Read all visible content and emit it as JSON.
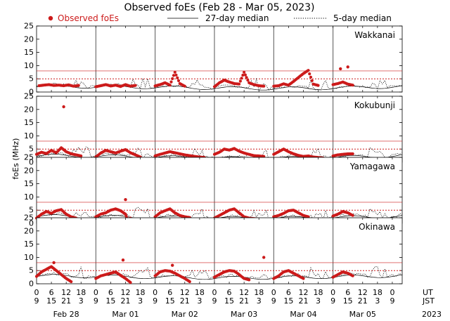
{
  "chart_data": {
    "type": "scatter",
    "title": "Observed foEs (Feb 28 - Mar 05, 2023)",
    "legend": {
      "observed": "Observed foEs",
      "median27": "27-day median",
      "median5": "5-day median",
      "placement": "top"
    },
    "ylabel": "foEs (MHz)",
    "ylim": [
      0,
      25
    ],
    "yticks": [
      0,
      5,
      10,
      15,
      20,
      25
    ],
    "xrange_hours_ut": [
      0,
      148
    ],
    "x_hour_ticks": [
      "0",
      "6",
      "12",
      "18",
      "0",
      "6",
      "12",
      "18",
      "0",
      "6",
      "12",
      "18",
      "0",
      "6",
      "12",
      "18",
      "0",
      "6",
      "12",
      "18",
      "0",
      "6",
      "12",
      "18",
      "0"
    ],
    "x_jst_ticks": [
      "9",
      "15",
      "21",
      "3",
      "9",
      "15",
      "21",
      "3",
      "9",
      "15",
      "21",
      "3",
      "9",
      "15",
      "21",
      "3",
      "9",
      "15",
      "21",
      "3",
      "9",
      "15",
      "21",
      "3",
      "9"
    ],
    "x_row_labels": {
      "ut": "UT",
      "jst": "JST",
      "year": "2023"
    },
    "dates": [
      "Feb 28",
      "Mar 01",
      "Mar 02",
      "Mar 03",
      "Mar 04",
      "Mar 05"
    ],
    "colors": {
      "observed": "#cc1a1a",
      "median27": "#000000",
      "threshold": "#cc1a1a",
      "day_line": "#555555"
    },
    "panels": [
      {
        "station": "Wakkanai",
        "thresholds": [
          5,
          8
        ],
        "median27": [
          2.2,
          2.0,
          1.8,
          1.5,
          1.3,
          1.5,
          2.0
        ],
        "observed_segments": [
          [
            [
              1,
              2.4
            ],
            [
              3,
              2.6
            ],
            [
              5,
              2.8
            ],
            [
              7,
              2.5
            ],
            [
              9,
              2.6
            ],
            [
              11,
              2.4
            ],
            [
              13,
              2.7
            ],
            [
              15,
              2.2
            ],
            [
              17,
              2.5
            ]
          ],
          [
            [
              24,
              2.0
            ],
            [
              26,
              2.4
            ],
            [
              28,
              2.8
            ],
            [
              30,
              2.3
            ],
            [
              32,
              2.6
            ],
            [
              34,
              2.1
            ],
            [
              36,
              2.8
            ],
            [
              38,
              2.2
            ],
            [
              40,
              2.5
            ]
          ],
          [
            [
              48,
              2.3
            ],
            [
              50,
              2.8
            ],
            [
              52,
              3.5
            ],
            [
              54,
              2.6
            ],
            [
              56,
              7.5
            ],
            [
              58,
              3.2
            ],
            [
              60,
              2.2
            ]
          ],
          [
            [
              72,
              2.0
            ],
            [
              74,
              3.5
            ],
            [
              76,
              4.5
            ],
            [
              78,
              3.8
            ],
            [
              80,
              3.2
            ],
            [
              82,
              3.0
            ],
            [
              84,
              7.5
            ],
            [
              86,
              3.5
            ],
            [
              88,
              2.8
            ],
            [
              90,
              2.4
            ],
            [
              92,
              2.2
            ]
          ],
          [
            [
              96,
              2.2
            ],
            [
              98,
              2.4
            ],
            [
              100,
              3.1
            ],
            [
              102,
              2.6
            ],
            [
              104,
              4.0
            ],
            [
              106,
              5.5
            ],
            [
              108,
              7.0
            ],
            [
              110,
              8.2
            ],
            [
              112,
              3.0
            ],
            [
              114,
              2.5
            ]
          ],
          [
            [
              120,
              2.8
            ],
            [
              122,
              3.2
            ],
            [
              124,
              3.8
            ],
            [
              126,
              3.0
            ],
            [
              128,
              2.6
            ]
          ]
        ],
        "observed_outliers": [
          [
            123,
            8.8
          ],
          [
            126,
            9.5
          ]
        ]
      },
      {
        "station": "Kokubunji",
        "thresholds": [
          5,
          8
        ],
        "median27": [
          2.5,
          2.3,
          2.0,
          1.6,
          1.5,
          1.8,
          2.4
        ],
        "observed_segments": [
          [
            [
              0,
              3.0
            ],
            [
              2,
              3.8
            ],
            [
              4,
              3.3
            ],
            [
              6,
              4.5
            ],
            [
              8,
              3.6
            ],
            [
              10,
              5.5
            ],
            [
              12,
              4.0
            ],
            [
              14,
              3.2
            ],
            [
              16,
              2.8
            ],
            [
              18,
              2.4
            ]
          ],
          [
            [
              24,
              2.0
            ],
            [
              26,
              3.5
            ],
            [
              28,
              4.5
            ],
            [
              30,
              4.0
            ],
            [
              32,
              3.5
            ],
            [
              34,
              4.2
            ],
            [
              36,
              4.8
            ],
            [
              38,
              3.6
            ],
            [
              40,
              2.8
            ],
            [
              42,
              2.0
            ]
          ],
          [
            [
              48,
              2.4
            ],
            [
              50,
              3.0
            ],
            [
              52,
              3.5
            ],
            [
              54,
              4.0
            ],
            [
              56,
              3.6
            ],
            [
              58,
              3.2
            ],
            [
              60,
              2.8
            ],
            [
              62,
              2.5
            ],
            [
              64,
              2.2
            ],
            [
              66,
              2.0
            ],
            [
              68,
              1.8
            ]
          ],
          [
            [
              72,
              3.0
            ],
            [
              74,
              3.8
            ],
            [
              76,
              5.0
            ],
            [
              78,
              4.6
            ],
            [
              80,
              5.2
            ],
            [
              82,
              4.2
            ],
            [
              84,
              3.5
            ],
            [
              86,
              3.0
            ],
            [
              88,
              2.5
            ],
            [
              90,
              2.4
            ],
            [
              92,
              2.2
            ]
          ],
          [
            [
              96,
              3.0
            ],
            [
              98,
              4.0
            ],
            [
              100,
              5.0
            ],
            [
              102,
              4.0
            ],
            [
              104,
              3.2
            ],
            [
              106,
              2.6
            ],
            [
              108,
              2.2
            ],
            [
              110,
              2.4
            ],
            [
              112,
              2.0
            ],
            [
              114,
              1.8
            ],
            [
              116,
              1.6
            ]
          ],
          [
            [
              120,
              2.4
            ],
            [
              122,
              2.8
            ],
            [
              124,
              3.0
            ],
            [
              126,
              3.2
            ],
            [
              128,
              3.2
            ]
          ]
        ],
        "observed_outliers": [
          [
            11,
            21.0
          ]
        ]
      },
      {
        "station": "Yamagawa",
        "thresholds": [
          5,
          8
        ],
        "median27": [
          2.8,
          2.5,
          2.3,
          2.0,
          2.0,
          2.2,
          2.6
        ],
        "observed_segments": [
          [
            [
              0,
              2.0
            ],
            [
              2,
              3.5
            ],
            [
              4,
              4.5
            ],
            [
              6,
              3.8
            ],
            [
              8,
              4.8
            ],
            [
              10,
              5.2
            ],
            [
              12,
              3.5
            ],
            [
              14,
              2.5
            ],
            [
              16,
              2.0
            ]
          ],
          [
            [
              24,
              2.5
            ],
            [
              26,
              3.5
            ],
            [
              28,
              4.0
            ],
            [
              30,
              5.0
            ],
            [
              32,
              5.5
            ],
            [
              34,
              4.8
            ],
            [
              36,
              3.5
            ],
            [
              37,
              0.8
            ],
            [
              38,
              2.0
            ]
          ],
          [
            [
              48,
              2.5
            ],
            [
              50,
              4.0
            ],
            [
              52,
              4.8
            ],
            [
              54,
              5.5
            ],
            [
              56,
              4.0
            ],
            [
              58,
              3.0
            ],
            [
              60,
              2.5
            ],
            [
              62,
              2.2
            ]
          ],
          [
            [
              72,
              2.0
            ],
            [
              74,
              3.0
            ],
            [
              76,
              4.0
            ],
            [
              78,
              5.0
            ],
            [
              80,
              5.5
            ],
            [
              82,
              4.0
            ],
            [
              84,
              2.5
            ],
            [
              86,
              2.0
            ],
            [
              88,
              1.8
            ],
            [
              90,
              1.6
            ]
          ],
          [
            [
              96,
              2.5
            ],
            [
              98,
              3.0
            ],
            [
              100,
              3.8
            ],
            [
              102,
              4.8
            ],
            [
              104,
              5.0
            ],
            [
              106,
              4.0
            ],
            [
              108,
              3.0
            ],
            [
              110,
              2.5
            ]
          ],
          [
            [
              120,
              2.8
            ],
            [
              122,
              3.5
            ],
            [
              124,
              4.5
            ],
            [
              126,
              4.0
            ],
            [
              128,
              3.0
            ]
          ]
        ],
        "observed_outliers": [
          [
            36,
            9.0
          ]
        ]
      },
      {
        "station": "Okinawa",
        "thresholds": [
          5,
          8
        ],
        "median27": [
          3.0,
          2.8,
          2.5,
          2.2,
          2.3,
          2.6,
          3.0
        ],
        "observed_segments": [
          [
            [
              0,
              2.8
            ],
            [
              2,
              4.5
            ],
            [
              4,
              5.5
            ],
            [
              6,
              6.5
            ],
            [
              8,
              5.0
            ],
            [
              10,
              3.5
            ],
            [
              12,
              2.0
            ],
            [
              14,
              0.8
            ]
          ],
          [
            [
              24,
              2.0
            ],
            [
              26,
              3.0
            ],
            [
              28,
              3.5
            ],
            [
              30,
              4.0
            ],
            [
              32,
              4.5
            ],
            [
              34,
              3.2
            ],
            [
              36,
              2.0
            ],
            [
              38,
              0.5
            ]
          ],
          [
            [
              48,
              3.0
            ],
            [
              50,
              4.5
            ],
            [
              52,
              5.0
            ],
            [
              54,
              4.8
            ],
            [
              56,
              4.0
            ],
            [
              58,
              3.0
            ],
            [
              60,
              2.0
            ],
            [
              62,
              0.8
            ]
          ],
          [
            [
              72,
              2.5
            ],
            [
              74,
              3.5
            ],
            [
              76,
              4.5
            ],
            [
              78,
              5.0
            ],
            [
              80,
              4.8
            ],
            [
              82,
              3.5
            ],
            [
              84,
              2.0
            ],
            [
              86,
              1.5
            ]
          ],
          [
            [
              96,
              2.0
            ],
            [
              98,
              3.0
            ],
            [
              100,
              4.5
            ],
            [
              102,
              5.0
            ],
            [
              104,
              4.0
            ],
            [
              106,
              3.0
            ],
            [
              108,
              2.0
            ]
          ],
          [
            [
              120,
              2.5
            ],
            [
              122,
              3.5
            ],
            [
              124,
              4.5
            ],
            [
              126,
              4.0
            ],
            [
              128,
              3.0
            ]
          ]
        ],
        "observed_outliers": [
          [
            7,
            8.0
          ],
          [
            35,
            9.0
          ],
          [
            55,
            7.0
          ],
          [
            92,
            10.0
          ]
        ]
      }
    ]
  }
}
